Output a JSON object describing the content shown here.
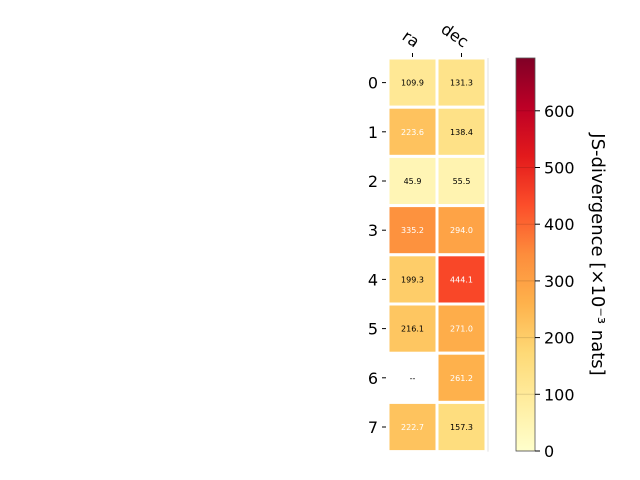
{
  "chart_data": {
    "type": "heatmap",
    "columns": [
      "ra",
      "dec"
    ],
    "rows": [
      "0",
      "1",
      "2",
      "3",
      "4",
      "5",
      "6",
      "7"
    ],
    "values": [
      [
        109.9,
        131.3
      ],
      [
        223.6,
        138.4
      ],
      [
        45.9,
        55.5
      ],
      [
        335.2,
        294.0
      ],
      [
        199.3,
        444.1
      ],
      [
        216.1,
        271.0
      ],
      [
        null,
        261.2
      ],
      [
        222.7,
        157.3
      ]
    ],
    "cell_labels": [
      [
        "109.9",
        "131.3"
      ],
      [
        "223.6",
        "138.4"
      ],
      [
        "45.9",
        "55.5"
      ],
      [
        "335.2",
        "294.0"
      ],
      [
        "199.3",
        "444.1"
      ],
      [
        "216.1",
        "271.0"
      ],
      [
        "--",
        "261.2"
      ],
      [
        "222.7",
        "157.3"
      ]
    ],
    "colorbar": {
      "label": "JS-divergence [×10⁻³ nats]",
      "range": [
        0,
        693.1
      ],
      "ticks": [
        0,
        100,
        200,
        300,
        400,
        500,
        600
      ],
      "colormap": "YlOrRd",
      "colormap_stops": [
        "#ffffcc",
        "#ffeda0",
        "#fed976",
        "#feb24c",
        "#fd8d3c",
        "#fc4e2a",
        "#e31a1c",
        "#bd0026",
        "#800026"
      ]
    },
    "missing_color": "#ffffff",
    "grid_color": "#ffffff"
  }
}
